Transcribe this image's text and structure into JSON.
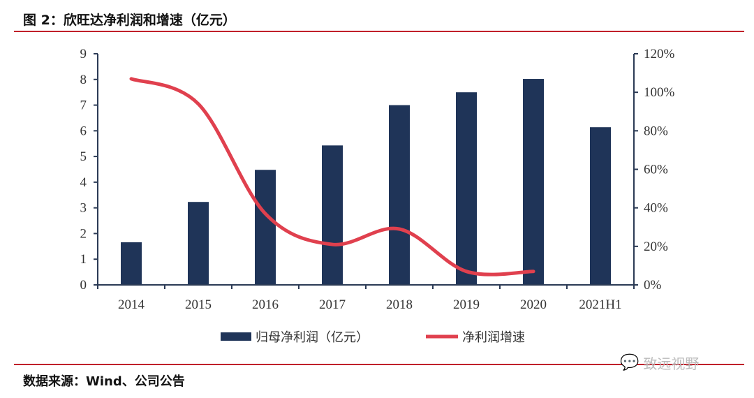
{
  "title": "图 2：欣旺达净利润和增速（亿元）",
  "source": "数据来源：Wind、公司公告",
  "watermark": "致远视野",
  "colors": {
    "bar": "#1f3458",
    "line": "#e0404e",
    "rule": "#c0202a"
  },
  "chart_data": {
    "type": "bar+line",
    "categories": [
      "2014",
      "2015",
      "2016",
      "2017",
      "2018",
      "2019",
      "2020",
      "2021H1"
    ],
    "series": [
      {
        "name": "归母净利润（亿元）",
        "type": "bar",
        "axis": "left",
        "values": [
          1.66,
          3.23,
          4.48,
          5.43,
          7.0,
          7.5,
          8.02,
          6.14
        ]
      },
      {
        "name": "净利润增速",
        "type": "line",
        "axis": "right",
        "values": [
          107,
          94,
          37,
          21,
          29,
          7,
          7,
          null
        ]
      }
    ],
    "y_left": {
      "range": [
        0,
        9
      ],
      "ticks": [
        "0",
        "1",
        "2",
        "3",
        "4",
        "5",
        "6",
        "7",
        "8",
        "9"
      ]
    },
    "y_right": {
      "range": [
        0,
        120
      ],
      "ticks": [
        "0%",
        "20%",
        "40%",
        "60%",
        "80%",
        "100%",
        "120%"
      ]
    },
    "grid": false,
    "legend_position": "bottom"
  }
}
